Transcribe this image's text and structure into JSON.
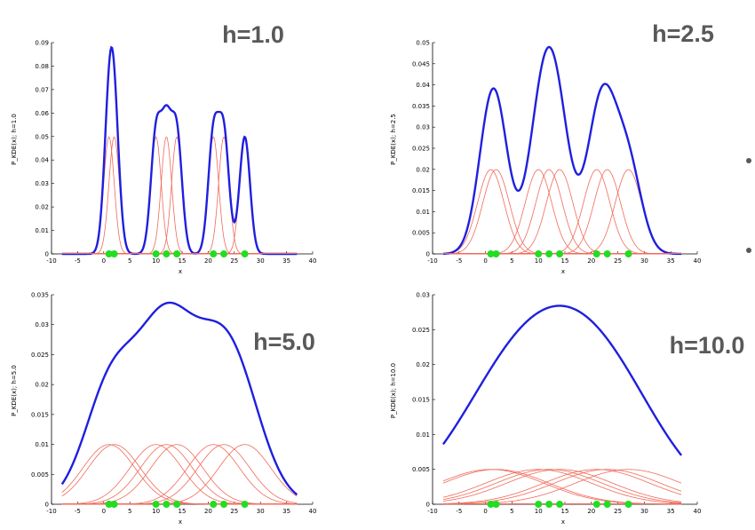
{
  "slide": {
    "bullet_color": "#595959"
  },
  "colors": {
    "kde": "#1f1fe0",
    "kernel": "#f06a5a",
    "points": "#22dd22",
    "label": "#595959"
  },
  "chart_data": [
    {
      "type": "line",
      "title": "h=1.0",
      "bandwidth": 1.0,
      "xlabel": "x",
      "ylabel": "P_KDE(x); h=1.0",
      "xlim": [
        -10,
        40
      ],
      "ylim": [
        0,
        0.09
      ],
      "xticks": [
        "-10",
        "-5",
        "0",
        "5",
        "10",
        "15",
        "20",
        "25",
        "30",
        "35",
        "40"
      ],
      "yticks": [
        "0",
        "0.01",
        "0.02",
        "0.03",
        "0.04",
        "0.05",
        "0.06",
        "0.07",
        "0.08",
        "0.09"
      ],
      "data_points": [
        1.0,
        2.0,
        10.0,
        12.0,
        14.0,
        21.0,
        23.0,
        27.0
      ],
      "x_range": [
        -8,
        37
      ],
      "series": [
        {
          "name": "kernel density estimate (sum of kernels)",
          "color": "#1f1fe0"
        },
        {
          "name": "individual kernels",
          "color": "#f06a5a"
        }
      ]
    },
    {
      "type": "line",
      "title": "h=2.5",
      "bandwidth": 2.5,
      "xlabel": "x",
      "ylabel": "P_KDE(x); h=2.5",
      "xlim": [
        -10,
        40
      ],
      "ylim": [
        0,
        0.05
      ],
      "xticks": [
        "-10",
        "-5",
        "0",
        "5",
        "10",
        "15",
        "20",
        "25",
        "30",
        "35",
        "40"
      ],
      "yticks": [
        "0",
        "0.005",
        "0.01",
        "0.015",
        "0.02",
        "0.025",
        "0.03",
        "0.035",
        "0.04",
        "0.045",
        "0.05"
      ],
      "data_points": [
        1.0,
        2.0,
        10.0,
        12.0,
        14.0,
        21.0,
        23.0,
        27.0
      ],
      "x_range": [
        -8,
        37
      ],
      "series": [
        {
          "name": "kernel density estimate (sum of kernels)",
          "color": "#1f1fe0"
        },
        {
          "name": "individual kernels",
          "color": "#f06a5a"
        }
      ]
    },
    {
      "type": "line",
      "title": "h=5.0",
      "bandwidth": 5.0,
      "xlabel": "x",
      "ylabel": "P_KDE(x); h=5.0",
      "xlim": [
        -10,
        40
      ],
      "ylim": [
        0,
        0.035
      ],
      "xticks": [
        "-10",
        "-5",
        "0",
        "5",
        "10",
        "15",
        "20",
        "25",
        "30",
        "35",
        "40"
      ],
      "yticks": [
        "0",
        "0.005",
        "0.01",
        "0.015",
        "0.02",
        "0.025",
        "0.03",
        "0.035"
      ],
      "data_points": [
        1.0,
        2.0,
        10.0,
        12.0,
        14.0,
        21.0,
        23.0,
        27.0
      ],
      "x_range": [
        -8,
        37
      ],
      "series": [
        {
          "name": "kernel density estimate (sum of kernels)",
          "color": "#1f1fe0"
        },
        {
          "name": "individual kernels",
          "color": "#f06a5a"
        }
      ]
    },
    {
      "type": "line",
      "title": "h=10.0",
      "bandwidth": 10.0,
      "xlabel": "x",
      "ylabel": "P_KDE(x); h=10.0",
      "xlim": [
        -10,
        40
      ],
      "ylim": [
        0,
        0.03
      ],
      "xticks": [
        "-10",
        "-5",
        "0",
        "5",
        "10",
        "15",
        "20",
        "25",
        "30",
        "35",
        "40"
      ],
      "yticks": [
        "0",
        "0.005",
        "0.01",
        "0.015",
        "0.02",
        "0.025",
        "0.03"
      ],
      "data_points": [
        1.0,
        2.0,
        10.0,
        12.0,
        14.0,
        21.0,
        23.0,
        27.0
      ],
      "x_range": [
        -8,
        37
      ],
      "series": [
        {
          "name": "kernel density estimate (sum of kernels)",
          "color": "#1f1fe0"
        },
        {
          "name": "individual kernels",
          "color": "#f06a5a"
        }
      ]
    }
  ]
}
